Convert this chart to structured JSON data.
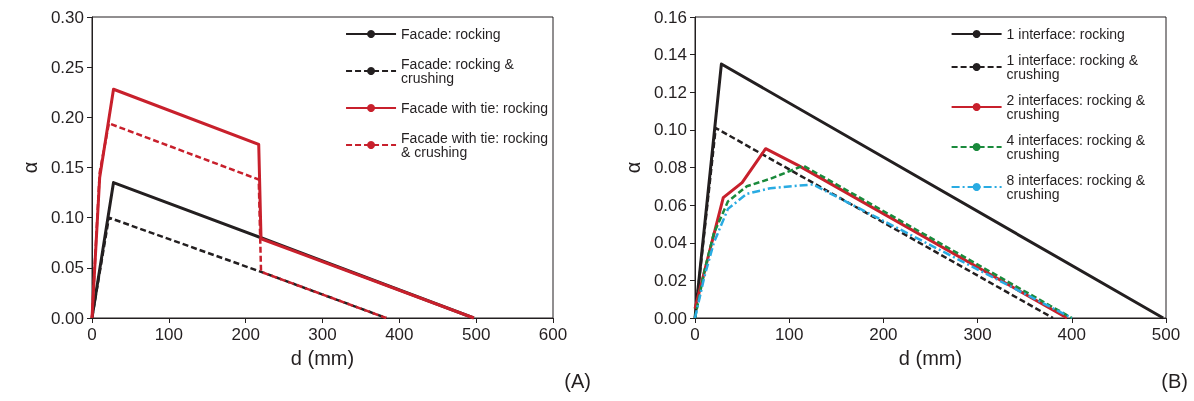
{
  "chart_data": [
    {
      "type": "line",
      "xlabel": "d (mm)",
      "ylabel": "α",
      "annotations": [
        "(A)"
      ],
      "xlim": [
        0,
        600
      ],
      "xticks": [
        0,
        100,
        200,
        300,
        400,
        500,
        600
      ],
      "ylim": [
        0,
        0.3
      ],
      "yticks": [
        {
          "value": 0,
          "label": "0.00"
        },
        {
          "value": 0.05,
          "label": "0.05"
        },
        {
          "value": 0.1,
          "label": "0.10"
        },
        {
          "value": 0.15,
          "label": "0.15"
        },
        {
          "value": 0.2,
          "label": "0.20"
        },
        {
          "value": 0.25,
          "label": "0.25"
        },
        {
          "value": 0.3,
          "label": "0.30"
        }
      ],
      "grid": false,
      "legend": "top right",
      "marker": "none",
      "series": [
        {
          "name": "Facade: rocking",
          "color": "#231f20",
          "line_style": "solid",
          "x": [
            0,
            28,
            220,
            497
          ],
          "values": [
            0,
            0.135,
            0.08,
            0
          ]
        },
        {
          "name": "Facade: rocking & crushing",
          "color": "#231f20",
          "line_style": "dashed",
          "x": [
            0,
            22,
            220,
            383
          ],
          "values": [
            0,
            0.1,
            0.046,
            0
          ]
        },
        {
          "name": "Facade with tie: rocking",
          "color": "#c8202c",
          "line_style": "solid",
          "x": [
            0,
            10,
            28,
            217,
            220,
            497
          ],
          "values": [
            0,
            0.14,
            0.228,
            0.173,
            0.079,
            0
          ]
        },
        {
          "name": "Facade with tie: rocking & crushing",
          "color": "#c8202c",
          "line_style": "dashed",
          "x": [
            0,
            10,
            22,
            217,
            220,
            383
          ],
          "values": [
            0,
            0.145,
            0.194,
            0.138,
            0.046,
            0
          ]
        }
      ]
    },
    {
      "type": "line",
      "xlabel": "d (mm)",
      "ylabel": "α",
      "annotations": [
        "(B)"
      ],
      "xlim": [
        0,
        500
      ],
      "xticks": [
        0,
        100,
        200,
        300,
        400,
        500
      ],
      "ylim": [
        0,
        0.16
      ],
      "yticks": [
        {
          "value": 0,
          "label": "0.00"
        },
        {
          "value": 0.02,
          "label": "0.02"
        },
        {
          "value": 0.04,
          "label": "0.04"
        },
        {
          "value": 0.06,
          "label": "0.06"
        },
        {
          "value": 0.08,
          "label": "0.08"
        },
        {
          "value": 0.1,
          "label": "0.10"
        },
        {
          "value": 0.12,
          "label": "0.12"
        },
        {
          "value": 0.14,
          "label": "0.14"
        },
        {
          "value": 0.16,
          "label": "0.16"
        }
      ],
      "grid": false,
      "legend": "top right",
      "marker": "none",
      "series": [
        {
          "name": "1 interface: rocking",
          "color": "#231f20",
          "line_style": "solid",
          "x": [
            0,
            28,
            497
          ],
          "values": [
            0,
            0.135,
            0
          ]
        },
        {
          "name": "1 interface: rocking & crushing",
          "color": "#231f20",
          "line_style": "dashed",
          "x": [
            0,
            22,
            380
          ],
          "values": [
            0,
            0.101,
            0
          ]
        },
        {
          "name": "2 interfaces: rocking & crushing",
          "color": "#c8202c",
          "line_style": "solid",
          "x": [
            0,
            30,
            50,
            75,
            110,
            395
          ],
          "values": [
            0.005,
            0.064,
            0.072,
            0.09,
            0.081,
            0
          ]
        },
        {
          "name": "4 interfaces: rocking & crushing",
          "color": "#1a8a3c",
          "line_style": "dashed",
          "x": [
            0,
            10,
            20,
            35,
            55,
            80,
            115,
            400
          ],
          "values": [
            0,
            0.025,
            0.045,
            0.062,
            0.07,
            0.074,
            0.081,
            0
          ]
        },
        {
          "name": "8 interfaces: rocking & crushing",
          "color": "#29abe2",
          "line_style": "dotted",
          "x": [
            0,
            10,
            20,
            35,
            55,
            80,
            125,
            400
          ],
          "values": [
            0,
            0.022,
            0.04,
            0.058,
            0.066,
            0.069,
            0.071,
            0
          ]
        }
      ]
    }
  ]
}
